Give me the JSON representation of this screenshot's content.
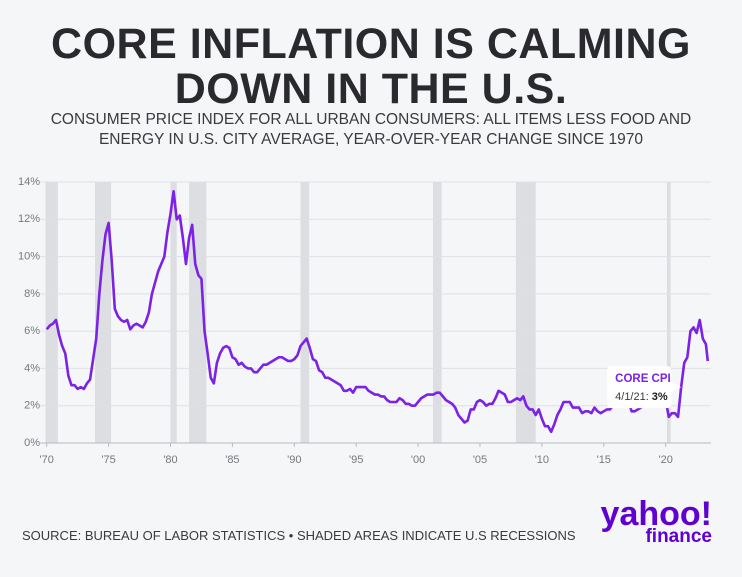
{
  "chart_data": {
    "type": "line",
    "title": "CORE INFLATION IS CALMING DOWN IN THE U.S.",
    "subtitle": "CONSUMER PRICE INDEX FOR ALL URBAN CONSUMERS: ALL ITEMS LESS FOOD AND ENERGY IN U.S. CITY AVERAGE, YEAR-OVER-YEAR CHANGE SINCE 1970",
    "source": "SOURCE: BUREAU OF LABOR STATISTICS • SHADED AREAS INDICATE U.S RECESSIONS",
    "logo": {
      "brand": "yahoo!",
      "sub": "finance"
    },
    "xlim": [
      1969.7,
      2023.5
    ],
    "ylim": [
      0,
      14
    ],
    "xticks": [
      {
        "value": 1970,
        "label": "'70"
      },
      {
        "value": 1975,
        "label": "'75"
      },
      {
        "value": 1980,
        "label": "'80"
      },
      {
        "value": 1985,
        "label": "'85"
      },
      {
        "value": 1990,
        "label": "'90"
      },
      {
        "value": 1995,
        "label": "'95"
      },
      {
        "value": 2000,
        "label": "'00"
      },
      {
        "value": 2005,
        "label": "'05"
      },
      {
        "value": 2010,
        "label": "'10"
      },
      {
        "value": 2015,
        "label": "'15"
      },
      {
        "value": 2020,
        "label": "'20"
      }
    ],
    "yticks": [
      {
        "value": 0,
        "label": "0%"
      },
      {
        "value": 2,
        "label": "2%"
      },
      {
        "value": 4,
        "label": "4%"
      },
      {
        "value": 6,
        "label": "6%"
      },
      {
        "value": 8,
        "label": "8%"
      },
      {
        "value": 10,
        "label": "10%"
      },
      {
        "value": 12,
        "label": "12%"
      },
      {
        "value": 14,
        "label": "14%"
      }
    ],
    "grid": true,
    "recession_color": "#dcdee2",
    "recessions": [
      {
        "start": 1969.9,
        "end": 1970.9
      },
      {
        "start": 1973.9,
        "end": 1975.2
      },
      {
        "start": 1980.0,
        "end": 1980.5
      },
      {
        "start": 1981.5,
        "end": 1982.9
      },
      {
        "start": 1990.5,
        "end": 1991.2
      },
      {
        "start": 2001.2,
        "end": 2001.9
      },
      {
        "start": 2007.9,
        "end": 2009.5
      },
      {
        "start": 2020.1,
        "end": 2020.4
      }
    ],
    "series": [
      {
        "color": "#7b22e6",
        "x": [
          1970,
          1970.25,
          1970.5,
          1970.75,
          1971,
          1971.25,
          1971.5,
          1971.75,
          1972,
          1972.25,
          1972.5,
          1972.75,
          1973,
          1973.25,
          1973.5,
          1973.75,
          1974,
          1974.25,
          1974.5,
          1974.75,
          1975,
          1975.25,
          1975.5,
          1975.75,
          1976,
          1976.25,
          1976.5,
          1976.75,
          1977,
          1977.25,
          1977.5,
          1977.75,
          1978,
          1978.25,
          1978.5,
          1978.75,
          1979,
          1979.25,
          1979.5,
          1979.75,
          1980,
          1980.25,
          1980.5,
          1980.75,
          1981,
          1981.25,
          1981.5,
          1981.75,
          1982,
          1982.25,
          1982.5,
          1982.75,
          1983,
          1983.25,
          1983.5,
          1983.75,
          1984,
          1984.25,
          1984.5,
          1984.75,
          1985,
          1985.25,
          1985.5,
          1985.75,
          1986,
          1986.25,
          1986.5,
          1986.75,
          1987,
          1987.25,
          1987.5,
          1987.75,
          1988,
          1988.25,
          1988.5,
          1988.75,
          1989,
          1989.25,
          1989.5,
          1989.75,
          1990,
          1990.25,
          1990.5,
          1990.75,
          1991,
          1991.25,
          1991.5,
          1991.75,
          1992,
          1992.25,
          1992.5,
          1992.75,
          1993,
          1993.25,
          1993.5,
          1993.75,
          1994,
          1994.25,
          1994.5,
          1994.75,
          1995,
          1995.25,
          1995.5,
          1995.75,
          1996,
          1996.25,
          1996.5,
          1996.75,
          1997,
          1997.25,
          1997.5,
          1997.75,
          1998,
          1998.25,
          1998.5,
          1998.75,
          1999,
          1999.25,
          1999.5,
          1999.75,
          2000,
          2000.25,
          2000.5,
          2000.75,
          2001,
          2001.25,
          2001.5,
          2001.75,
          2002,
          2002.25,
          2002.5,
          2002.75,
          2003,
          2003.25,
          2003.5,
          2003.75,
          2004,
          2004.25,
          2004.5,
          2004.75,
          2005,
          2005.25,
          2005.5,
          2005.75,
          2006,
          2006.25,
          2006.5,
          2006.75,
          2007,
          2007.25,
          2007.5,
          2007.75,
          2008,
          2008.25,
          2008.5,
          2008.75,
          2009,
          2009.25,
          2009.5,
          2009.75,
          2010,
          2010.25,
          2010.5,
          2010.75,
          2011,
          2011.25,
          2011.5,
          2011.75,
          2012,
          2012.25,
          2012.5,
          2012.75,
          2013,
          2013.25,
          2013.5,
          2013.75,
          2014,
          2014.25,
          2014.5,
          2014.75,
          2015,
          2015.25,
          2015.5,
          2015.75,
          2016,
          2016.25,
          2016.5,
          2016.75,
          2017,
          2017.25,
          2017.5,
          2017.75,
          2018,
          2018.25,
          2018.5,
          2018.75,
          2019,
          2019.25,
          2019.5,
          2019.75,
          2020,
          2020.25,
          2020.5,
          2020.75,
          2021,
          2021.25,
          2021.5,
          2021.75,
          2022,
          2022.25,
          2022.5,
          2022.75,
          2023,
          2023.25,
          2023.4
        ],
        "values": [
          6.1,
          6.3,
          6.4,
          6.6,
          5.8,
          5.2,
          4.8,
          3.6,
          3.1,
          3.1,
          2.9,
          3.0,
          2.9,
          3.2,
          3.4,
          4.5,
          5.6,
          8.0,
          9.8,
          11.2,
          11.8,
          9.8,
          7.2,
          6.8,
          6.6,
          6.5,
          6.6,
          6.1,
          6.3,
          6.4,
          6.3,
          6.2,
          6.5,
          7.0,
          8.0,
          8.6,
          9.2,
          9.6,
          10.0,
          11.3,
          12.3,
          13.5,
          12.0,
          12.2,
          11.0,
          9.6,
          11.0,
          11.7,
          9.6,
          9.0,
          8.8,
          6.0,
          4.8,
          3.5,
          3.2,
          4.3,
          4.8,
          5.1,
          5.2,
          5.1,
          4.6,
          4.5,
          4.2,
          4.3,
          4.1,
          4.0,
          4.0,
          3.8,
          3.8,
          4.0,
          4.2,
          4.2,
          4.3,
          4.4,
          4.5,
          4.6,
          4.6,
          4.5,
          4.4,
          4.4,
          4.5,
          4.7,
          5.2,
          5.4,
          5.6,
          5.1,
          4.5,
          4.4,
          3.9,
          3.8,
          3.5,
          3.5,
          3.4,
          3.3,
          3.2,
          3.1,
          2.8,
          2.8,
          2.9,
          2.7,
          3.0,
          3.0,
          3.0,
          3.0,
          2.8,
          2.7,
          2.6,
          2.6,
          2.5,
          2.5,
          2.3,
          2.2,
          2.2,
          2.2,
          2.4,
          2.3,
          2.1,
          2.1,
          2.0,
          2.0,
          2.2,
          2.4,
          2.5,
          2.6,
          2.6,
          2.6,
          2.7,
          2.7,
          2.5,
          2.3,
          2.2,
          2.1,
          1.9,
          1.5,
          1.3,
          1.1,
          1.2,
          1.8,
          1.8,
          2.2,
          2.3,
          2.2,
          2.0,
          2.1,
          2.1,
          2.4,
          2.8,
          2.7,
          2.6,
          2.2,
          2.2,
          2.3,
          2.4,
          2.3,
          2.5,
          2.0,
          1.8,
          1.8,
          1.5,
          1.8,
          1.3,
          0.9,
          0.9,
          0.6,
          1.0,
          1.5,
          1.8,
          2.2,
          2.2,
          2.2,
          1.9,
          1.9,
          1.9,
          1.6,
          1.7,
          1.7,
          1.6,
          1.9,
          1.7,
          1.6,
          1.7,
          1.8,
          1.8,
          2.0,
          2.2,
          2.2,
          2.2,
          2.2,
          2.2,
          1.7,
          1.7,
          1.8,
          1.9,
          2.2,
          2.2,
          2.2,
          2.1,
          2.0,
          2.3,
          2.3,
          2.3,
          1.4,
          1.6,
          1.6,
          1.4,
          3.0,
          4.3,
          4.6,
          6.0,
          6.2,
          5.9,
          6.6,
          5.6,
          5.3,
          4.4
        ]
      }
    ],
    "annotation": {
      "label": "CORE CPI",
      "date": "4/1/21:",
      "x": 2021.25,
      "y": 3,
      "value_label": "3%"
    }
  }
}
